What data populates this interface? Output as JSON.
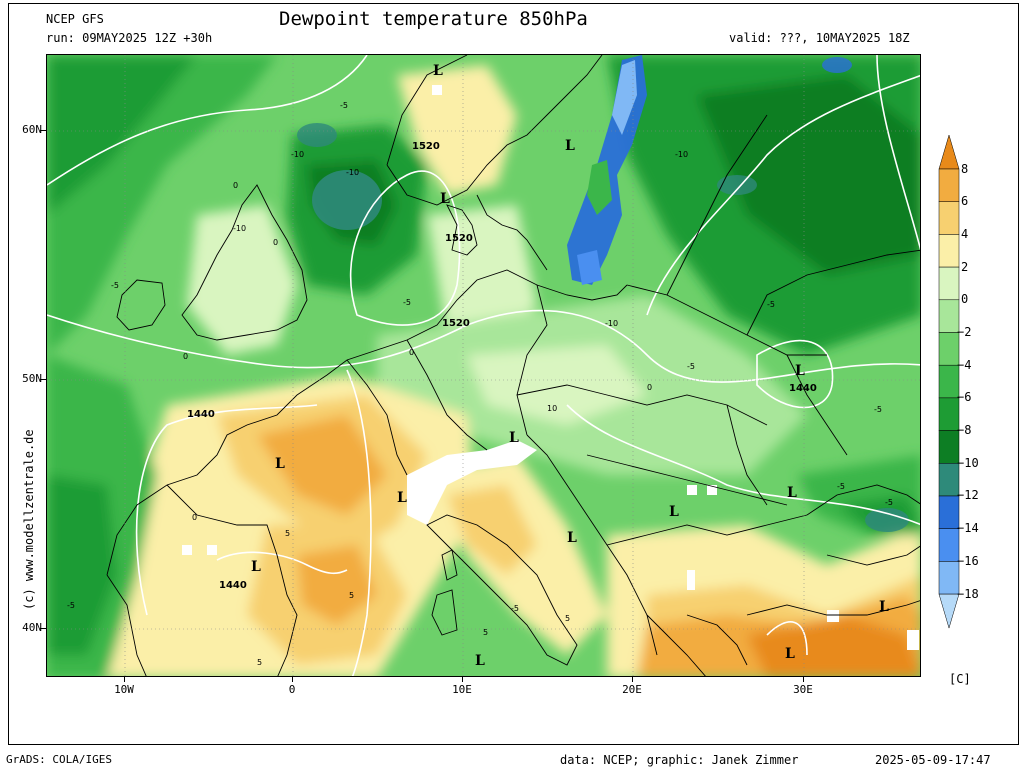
{
  "header": {
    "model": "NCEP GFS",
    "title": "Dewpoint temperature 850hPa",
    "run": "run: 09MAY2025 12Z +30h",
    "valid": "valid: ???, 10MAY2025 18Z"
  },
  "axes": {
    "lat_labels": [
      "60N",
      "50N",
      "40N"
    ],
    "lon_labels": [
      "10W",
      "0",
      "10E",
      "20E",
      "30E"
    ]
  },
  "colorbar": {
    "unit": "[C]",
    "labels": [
      "8",
      "6",
      "4",
      "2",
      "0",
      "−2",
      "−4",
      "−6",
      "−8",
      "−10",
      "−12",
      "−14",
      "−16",
      "−18"
    ],
    "colors": {
      "8_plus": "#e88a1a",
      "6_8": "#f2ac40",
      "4_6": "#f7d070",
      "2_4": "#fbefa8",
      "0_2": "#d9f5c0",
      "m2_0": "#a8e69a",
      "m4_m2": "#6dd06a",
      "m6_m4": "#3bb64a",
      "m8_m6": "#1e9c34",
      "m10_m8": "#0d7e24",
      "m12_m10": "#2e8a7a",
      "m14_m12": "#2a6fd8",
      "m16_m14": "#4a8ff0",
      "m18_m16": "#80b8f5",
      "below_m18": "#b6daf8"
    }
  },
  "map_labels": {
    "geopotential": [
      "1520",
      "1520",
      "1520",
      "1440",
      "1440",
      "1440"
    ],
    "lows": [
      "L",
      "L",
      "L",
      "L",
      "L",
      "L",
      "L",
      "L",
      "L",
      "L",
      "L",
      "L",
      "L",
      "L"
    ],
    "dewpoint_values": [
      "-5",
      "-10",
      "-10",
      "-5",
      "0",
      "-10",
      "0",
      "-5",
      "-5",
      "0",
      "0",
      "-10",
      "-10",
      "-5",
      "-5",
      "0",
      "5",
      "5",
      "10",
      "5",
      "-5",
      "5",
      "-5",
      "-5",
      "5",
      "0",
      "-5"
    ]
  },
  "footer": {
    "software": "GrADS: COLA/IGES",
    "credit": "data: NCEP; graphic: Janek Zimmer",
    "timestamp": "2025-05-09-17:47",
    "watermark": "(c) www.modellzentrale.de"
  }
}
